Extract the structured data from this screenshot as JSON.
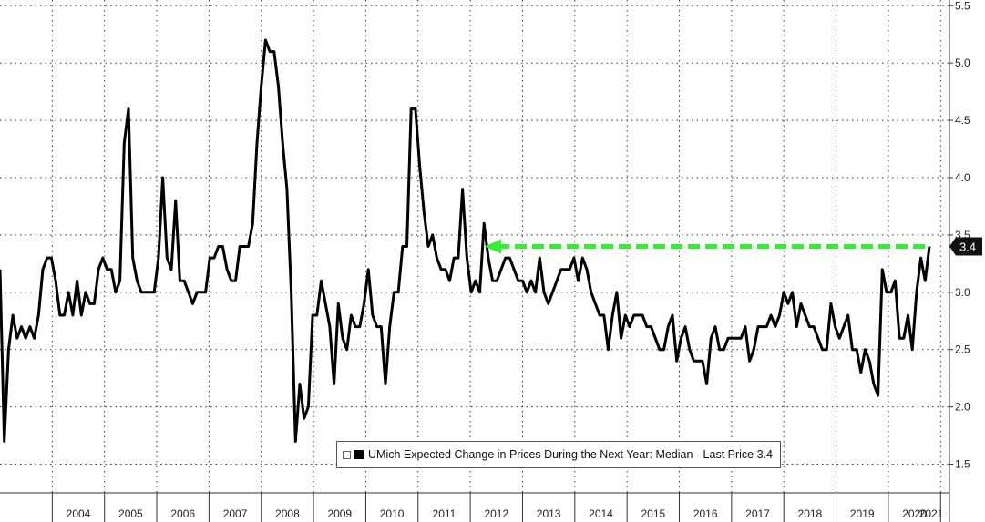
{
  "chart_data": {
    "type": "line",
    "legend": {
      "text": "UMich Expected Change in Prices During the Next Year: Median - Last Price 3.4",
      "placement": "bottom-center"
    },
    "last_price_label": "3.4",
    "last_value": 3.4,
    "reference_arrow_value": 3.4,
    "ylim": [
      1.25,
      5.55
    ],
    "yticks": [
      "1.5",
      "2.0",
      "2.5",
      "3.0",
      "3.5",
      "4.0",
      "4.5",
      "5.0",
      "5.5"
    ],
    "ytick_values": [
      1.5,
      2.0,
      2.5,
      3.0,
      3.5,
      4.0,
      4.5,
      5.0,
      5.5
    ],
    "xticks": [
      "2004",
      "2005",
      "2006",
      "2007",
      "2008",
      "2009",
      "2010",
      "2011",
      "2012",
      "2013",
      "2014",
      "2015",
      "2016",
      "2017",
      "2018",
      "2019",
      "2020",
      "2021"
    ],
    "x_start_year": 2003.0,
    "x_end_year": 2021.17,
    "grid": true,
    "colors": {
      "line": "#000000",
      "arrow": "#33ee33",
      "tag_bg": "#111111",
      "tag_text": "#ffffff"
    },
    "series": [
      {
        "values": [
          3.2,
          1.7,
          2.5,
          2.8,
          2.6,
          2.7,
          2.6,
          2.7,
          2.6,
          2.8,
          3.2,
          3.3,
          3.3,
          3.1,
          2.8,
          2.8,
          3.0,
          2.8,
          3.1,
          2.8,
          3.0,
          2.9,
          2.9,
          3.2,
          3.3,
          3.2,
          3.2,
          3.0,
          3.1,
          4.3,
          4.6,
          3.3,
          3.1,
          3.0,
          3.0,
          3.0,
          3.0,
          3.3,
          4.0,
          3.3,
          3.2,
          3.8,
          3.1,
          3.1,
          3.0,
          2.9,
          3.0,
          3.0,
          3.0,
          3.3,
          3.3,
          3.4,
          3.4,
          3.2,
          3.1,
          3.1,
          3.4,
          3.4,
          3.4,
          3.6,
          4.3,
          4.8,
          5.2,
          5.1,
          5.1,
          4.8,
          4.3,
          3.9,
          3.0,
          1.7,
          2.2,
          1.9,
          2.0,
          2.8,
          2.8,
          3.1,
          2.9,
          2.7,
          2.2,
          2.9,
          2.6,
          2.5,
          2.8,
          2.7,
          2.7,
          2.9,
          3.2,
          2.8,
          2.7,
          2.7,
          2.2,
          2.7,
          3.0,
          3.0,
          3.4,
          3.4,
          4.6,
          4.6,
          4.1,
          3.7,
          3.4,
          3.5,
          3.3,
          3.2,
          3.2,
          3.1,
          3.3,
          3.3,
          3.9,
          3.3,
          3.0,
          3.1,
          3.0,
          3.6,
          3.3,
          3.1,
          3.1,
          3.2,
          3.3,
          3.3,
          3.2,
          3.1,
          3.1,
          3.0,
          3.1,
          3.0,
          3.3,
          3.0,
          2.9,
          3.0,
          3.1,
          3.2,
          3.2,
          3.2,
          3.3,
          3.1,
          3.3,
          3.2,
          3.0,
          2.9,
          2.8,
          2.8,
          2.5,
          2.8,
          3.0,
          2.6,
          2.8,
          2.7,
          2.8,
          2.8,
          2.8,
          2.7,
          2.7,
          2.6,
          2.5,
          2.5,
          2.7,
          2.8,
          2.4,
          2.6,
          2.7,
          2.5,
          2.4,
          2.4,
          2.4,
          2.2,
          2.6,
          2.7,
          2.5,
          2.5,
          2.6,
          2.6,
          2.6,
          2.6,
          2.7,
          2.4,
          2.5,
          2.7,
          2.7,
          2.7,
          2.8,
          2.7,
          2.8,
          3.0,
          2.9,
          3.0,
          2.7,
          2.9,
          2.8,
          2.7,
          2.7,
          2.6,
          2.5,
          2.5,
          2.9,
          2.7,
          2.6,
          2.7,
          2.8,
          2.5,
          2.5,
          2.3,
          2.5,
          2.4,
          2.2,
          2.1,
          3.2,
          3.0,
          3.0,
          3.1,
          2.6,
          2.6,
          2.8,
          2.5,
          3.0,
          3.3,
          3.1,
          3.4
        ]
      }
    ]
  }
}
